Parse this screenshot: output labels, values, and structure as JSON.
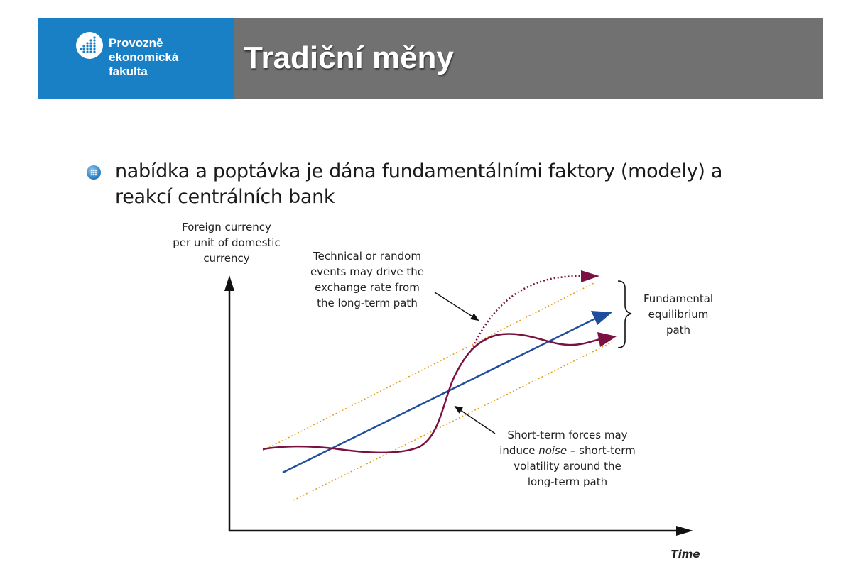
{
  "header": {
    "logo_lines": [
      "Provozně",
      "ekonomická",
      "fakulta"
    ],
    "title": "Tradiční měny"
  },
  "bullet": {
    "lines": [
      "nabídka a poptávka je dána fundamentálními faktory (modely) a",
      "reakcí centrálních bank"
    ]
  },
  "diagram": {
    "y_axis_label": [
      "Foreign currency",
      "per unit of domestic",
      "currency"
    ],
    "x_axis_label": "Time",
    "technical_note": [
      "Technical or random",
      "events may drive the",
      "exchange rate from",
      "the long-term path"
    ],
    "fundamental_label": [
      "Fundamental",
      "equilibrium",
      "path"
    ],
    "short_term_note": [
      "Short-term forces may",
      "induce",
      "noise",
      "– short-term",
      "volatility around the",
      "long-term path"
    ],
    "colors": {
      "equilibrium_line": "#1f4e9c",
      "exchange_rate_path": "#7a1241",
      "band_lines": "#e0a020",
      "axes": "#111111"
    }
  },
  "colors": {
    "logo_bg": "#1a80c6",
    "title_bar_bg": "#717172"
  }
}
